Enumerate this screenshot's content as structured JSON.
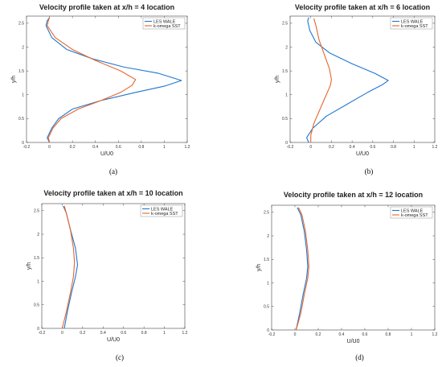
{
  "chart_data": [
    {
      "type": "line",
      "title": "Velocity profile taken at x/h = 4 location",
      "caption": "(a)",
      "xlabel": "U/U0",
      "ylabel": "y/h",
      "xlim": [
        -0.2,
        1.2
      ],
      "ylim": [
        0,
        2.65
      ],
      "xticks": [
        "-0.2",
        "0",
        "0.2",
        "0.4",
        "0.6",
        "0.8",
        "1",
        "1.2"
      ],
      "yticks": [
        "0",
        "0.5",
        "1",
        "1.5",
        "2",
        "2.5"
      ],
      "legend": "top-right",
      "series": [
        {
          "name": "LES WALE",
          "color": "#1f77d0",
          "x": [
            0.0,
            -0.02,
            0.02,
            0.08,
            0.2,
            0.45,
            0.75,
            1.0,
            1.15,
            0.95,
            0.65,
            0.38,
            0.15,
            0.02,
            -0.03,
            -0.02,
            0.0
          ],
          "y": [
            0.0,
            0.1,
            0.3,
            0.5,
            0.7,
            0.88,
            1.05,
            1.18,
            1.3,
            1.45,
            1.58,
            1.75,
            1.95,
            2.2,
            2.45,
            2.55,
            2.62
          ]
        },
        {
          "name": "k-omega SST",
          "color": "#e8652a",
          "x": [
            0.0,
            -0.01,
            0.03,
            0.1,
            0.25,
            0.45,
            0.62,
            0.72,
            0.75,
            0.62,
            0.4,
            0.2,
            0.05,
            -0.02,
            -0.01,
            0.0
          ],
          "y": [
            0.0,
            0.1,
            0.3,
            0.5,
            0.7,
            0.88,
            1.05,
            1.2,
            1.32,
            1.5,
            1.72,
            1.95,
            2.2,
            2.45,
            2.55,
            2.62
          ]
        }
      ]
    },
    {
      "type": "line",
      "title": "Velocity profile taken at x/h = 6 location",
      "caption": "(b)",
      "xlabel": "U/U0",
      "ylabel": "y/h",
      "xlim": [
        -0.2,
        1.2
      ],
      "ylim": [
        0,
        2.65
      ],
      "xticks": [
        "-0.2",
        "0",
        "0.2",
        "0.4",
        "0.6",
        "0.8",
        "1",
        "1.2"
      ],
      "yticks": [
        "0",
        "0.5",
        "1",
        "1.5",
        "2",
        "2.5"
      ],
      "legend": "top-right",
      "series": [
        {
          "name": "LES WALE",
          "color": "#1f77d0",
          "x": [
            -0.02,
            -0.04,
            0.02,
            0.15,
            0.35,
            0.55,
            0.7,
            0.75,
            0.62,
            0.4,
            0.18,
            0.05,
            -0.01,
            -0.03,
            -0.02
          ],
          "y": [
            0.0,
            0.1,
            0.3,
            0.55,
            0.8,
            1.05,
            1.22,
            1.3,
            1.45,
            1.65,
            1.88,
            2.1,
            2.35,
            2.55,
            2.62
          ]
        },
        {
          "name": "k-omega SST",
          "color": "#e8652a",
          "x": [
            0.0,
            0.0,
            0.03,
            0.08,
            0.14,
            0.19,
            0.2,
            0.18,
            0.13,
            0.08,
            0.05,
            0.03
          ],
          "y": [
            0.0,
            0.15,
            0.4,
            0.65,
            0.95,
            1.2,
            1.32,
            1.55,
            1.85,
            2.15,
            2.45,
            2.6
          ]
        }
      ]
    },
    {
      "type": "line",
      "title": "Velocity profile taken at x/h = 10 location",
      "caption": "(c)",
      "xlabel": "U/U0",
      "ylabel": "y/h",
      "xlim": [
        -0.2,
        1.2
      ],
      "ylim": [
        0,
        2.65
      ],
      "xticks": [
        "-0.2",
        "0",
        "0.2",
        "0.4",
        "0.6",
        "0.8",
        "1",
        "1.2"
      ],
      "yticks": [
        "0",
        "0.5",
        "1",
        "1.5",
        "2",
        "2.5"
      ],
      "legend": "top-right",
      "series": [
        {
          "name": "LES WALE",
          "color": "#1f77d0",
          "x": [
            0.02,
            0.05,
            0.09,
            0.13,
            0.15,
            0.13,
            0.08,
            0.04,
            0.01
          ],
          "y": [
            0.0,
            0.35,
            0.75,
            1.1,
            1.35,
            1.7,
            2.1,
            2.45,
            2.6
          ]
        },
        {
          "name": "k-omega SST",
          "color": "#e8652a",
          "x": [
            0.0,
            0.04,
            0.08,
            0.11,
            0.12,
            0.11,
            0.08,
            0.04,
            0.02
          ],
          "y": [
            0.0,
            0.35,
            0.75,
            1.1,
            1.4,
            1.7,
            2.1,
            2.45,
            2.6
          ]
        }
      ]
    },
    {
      "type": "line",
      "title": "Velocity profile taken at x/h = 12 location",
      "caption": "(d)",
      "xlabel": "U/U0",
      "ylabel": "y/h",
      "xlim": [
        -0.2,
        1.2
      ],
      "ylim": [
        0,
        2.65
      ],
      "xticks": [
        "-0.2",
        "0",
        "0.2",
        "0.4",
        "0.6",
        "0.8",
        "1",
        "1.2"
      ],
      "yticks": [
        "0",
        "0.5",
        "1",
        "1.5",
        "2",
        "2.5"
      ],
      "legend": "top-right",
      "series": [
        {
          "name": "LES WALE",
          "color": "#1f77d0",
          "x": [
            0.01,
            0.04,
            0.07,
            0.1,
            0.11,
            0.1,
            0.08,
            0.05,
            0.02
          ],
          "y": [
            0.0,
            0.35,
            0.75,
            1.1,
            1.35,
            1.7,
            2.1,
            2.45,
            2.6
          ]
        },
        {
          "name": "k-omega SST",
          "color": "#e8652a",
          "x": [
            0.01,
            0.05,
            0.08,
            0.11,
            0.12,
            0.11,
            0.09,
            0.06,
            0.03
          ],
          "y": [
            0.0,
            0.35,
            0.75,
            1.1,
            1.35,
            1.7,
            2.1,
            2.45,
            2.6
          ]
        }
      ]
    }
  ]
}
